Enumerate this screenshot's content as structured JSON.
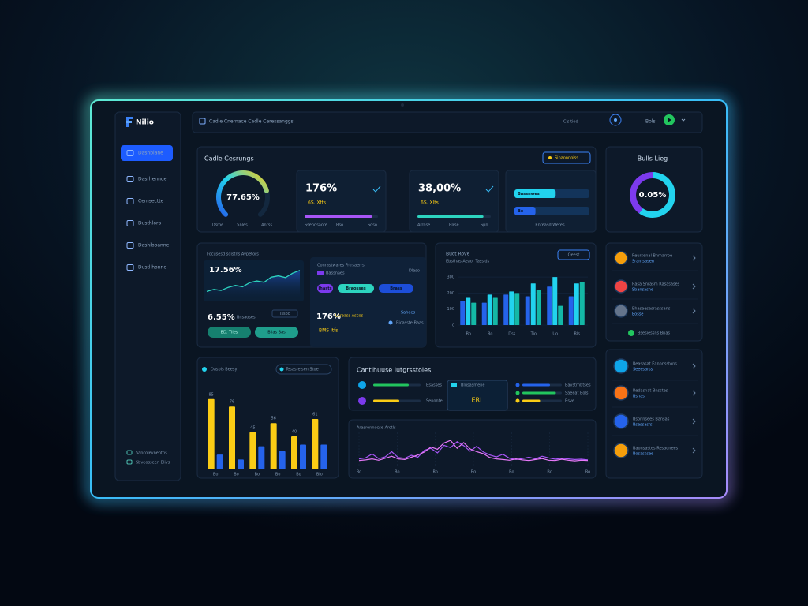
{
  "brand": "Nilio",
  "topbar": {
    "breadcrumb": "Cadle Cnernace Cadle Ceressanggs",
    "status": "Cls tiod",
    "user": "Bols"
  },
  "sidebar": {
    "active": 0,
    "items": [
      "Dashbiane",
      "Dasrhennge",
      "Cemsectte",
      "Dusthlorp",
      "Dashiboanne",
      "Dustllhonne"
    ],
    "footer": [
      "Sancolevnenths",
      "Sbveosseen Blivs"
    ]
  },
  "overview": {
    "title": "Cadle Cesrungs",
    "button": "Sinaonnoiss",
    "gauge": {
      "value": 77.65,
      "value_label": "77.65%",
      "legend": [
        "Dsroe",
        "Snles",
        "Anrss"
      ]
    },
    "kpis": [
      {
        "value_label": "176%",
        "sub": "6S. Xfts",
        "progress": 92,
        "color": "#a855f7",
        "footer": [
          "Ssendsaore",
          "Bso",
          "Soso"
        ]
      },
      {
        "value_label": "38,00%",
        "sub": "6S. Xlts",
        "progress": 90,
        "color": "#2dd4bf",
        "footer": [
          "Arrnse",
          "Blrse",
          "Spn"
        ]
      }
    ],
    "meters": {
      "items": [
        {
          "label": "Bassnwes",
          "value": 55,
          "color": "#22d3ee"
        },
        {
          "label": "Bo",
          "value": 28,
          "color": "#2563eb"
        }
      ],
      "footer": "Enreasd Weres"
    }
  },
  "ring": {
    "title": "Bulls Lieg",
    "center_label": "0.05%",
    "segments": [
      {
        "value": 60,
        "color": "#22d3ee"
      },
      {
        "value": 40,
        "color": "#7c3aed"
      }
    ]
  },
  "trend": {
    "title": "Focusesd sdistns Avpetors",
    "value_label": "17.56%",
    "line": {
      "values": [
        2,
        2.6,
        2.3,
        3.2,
        3.8,
        3.4,
        4.6,
        5.1,
        4.7,
        6.2,
        6.6,
        6.1,
        7.4,
        8.2
      ],
      "ylim": [
        0,
        10
      ],
      "color": "#2dd4bf"
    },
    "legend": "Tssoo",
    "sub_label": "6.55%",
    "sub_tag": "Bnsaoses",
    "buttons": [
      "BD. Tiles",
      "Bilas Bas"
    ],
    "panel": {
      "title": "Conrastwares Frtrsaerrs",
      "tag": "Bassnaes",
      "badge": "Dlaso",
      "pills": [
        "Ihasts",
        "Braosses",
        "Brass"
      ],
      "link": "Sahees",
      "stat": "176%",
      "stat_tag": "Lareass Ascos",
      "stat_sub": "BMS Itfs",
      "note": "Bicasste Baas"
    }
  },
  "bars": {
    "title": "Buct Rove",
    "subtitle": "Ebsthas Aeaor Tasslds",
    "button": "Oeest",
    "categories": [
      "Bo",
      "Ro",
      "Dss",
      "Tio",
      "Uo",
      "Rls"
    ],
    "ylim": [
      0,
      330
    ],
    "yticks": [
      0,
      100,
      200,
      300
    ],
    "series": [
      {
        "color": "#2563eb",
        "values": [
          150,
          140,
          190,
          180,
          240,
          180
        ]
      },
      {
        "color": "#22d3ee",
        "values": [
          170,
          190,
          210,
          260,
          300,
          260
        ]
      },
      {
        "color": "#14b8a6",
        "values": [
          140,
          170,
          200,
          220,
          120,
          270
        ]
      }
    ]
  },
  "yellow_bars": {
    "title": "Dasbls Beesy",
    "tag": "Tesasrelsen Stoe",
    "categories": [
      "Bo",
      "Bo",
      "Bo",
      "Bo",
      "Bo",
      "Bio"
    ],
    "ylim": [
      0,
      100
    ],
    "series": [
      {
        "color": "#facc15",
        "values": [
          85,
          76,
          45,
          56,
          40,
          61
        ]
      },
      {
        "color": "#2563eb",
        "values": [
          18,
          12,
          28,
          22,
          30,
          30
        ]
      }
    ]
  },
  "continuous": {
    "title": "Cantihuuse lutgrsstoles",
    "rows": [
      {
        "label": "Bsasses",
        "progress": 75,
        "color": "#22c55e"
      },
      {
        "label": "Senonte",
        "progress": 55,
        "color": "#facc15"
      }
    ],
    "panel": {
      "title": "Blusasmene",
      "stat": "ERI",
      "rows": [
        {
          "label": "Bavstrnbtses",
          "progress": 70,
          "color": "#2563eb"
        },
        {
          "label": "Saeeat Bols",
          "progress": 85,
          "color": "#22c55e"
        },
        {
          "label": "Bsve",
          "progress": 45,
          "color": "#facc15"
        }
      ]
    }
  },
  "waves": {
    "title": "Arasronnocse Arctls",
    "xlabels": [
      "Bo",
      "Bo",
      "Ro",
      "Bo",
      "Bo",
      "Bo",
      "Ro"
    ],
    "ylim": [
      0,
      10
    ],
    "series": [
      {
        "color": "#a855f7",
        "values": [
          2,
          2.3,
          3.5,
          2.1,
          2.6,
          4.2,
          2.4,
          2.2,
          3.1,
          2.5,
          4.6,
          5.2,
          3.8,
          6.1,
          5.4,
          7.2,
          6.0,
          4.3,
          5.8,
          4.1,
          3.2,
          2.6,
          3.4,
          2.2,
          1.8,
          2.1,
          2.5,
          2.0,
          2.8,
          2.3,
          1.9,
          2.2,
          2.0,
          1.8,
          1.9,
          1.7
        ]
      },
      {
        "color": "#e879f9",
        "values": [
          1.5,
          1.7,
          2.0,
          1.6,
          2.2,
          2.8,
          2.0,
          1.8,
          2.5,
          3.2,
          4.1,
          5.6,
          4.9,
          6.8,
          7.6,
          5.2,
          6.9,
          5.0,
          4.2,
          3.6,
          2.4,
          2.0,
          1.8,
          1.6,
          2.0,
          1.7,
          1.5,
          1.8,
          2.1,
          1.6,
          1.5,
          1.9,
          1.6,
          1.4,
          1.6,
          1.5
        ]
      }
    ]
  },
  "contacts": [
    {
      "name": "Reursenal Bnmarroe",
      "sub": "Srantsasen"
    },
    {
      "name": "Rasa Snrasm Rasasases",
      "sub": "Sbansasne"
    },
    {
      "name": "Bhasaesasrasssans",
      "sub": "Eosse"
    },
    {
      "name": "Bsesiessns Bnas",
      "sub": ""
    }
  ],
  "people": [
    {
      "name": "Reasasat Eanonsstons",
      "sub": "Seeesarss"
    },
    {
      "name": "Redasnat Bnsstes",
      "sub": "Bsnas"
    },
    {
      "name": "Bsonnsees Bansas",
      "sub": "Bsessasrs"
    },
    {
      "name": "Baonsastes Resaonees",
      "sub": "Bosasssee"
    }
  ]
}
